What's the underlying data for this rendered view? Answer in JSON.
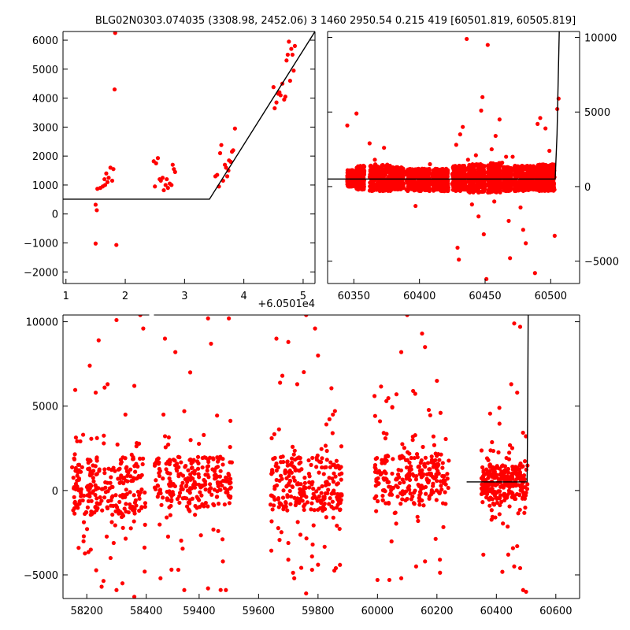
{
  "title": "BLG02N0303.074035 (3308.98, 2452.06)   3 1460 2950.54 0.215 419 [60501.819, 60505.819]",
  "colors": {
    "points": "#ff0000",
    "model": "#000000",
    "axes": "#000000"
  },
  "chart_data": [
    {
      "id": "zoom",
      "type": "scatter",
      "xlim": [
        0.95,
        5.2
      ],
      "ylim": [
        -2400,
        6300
      ],
      "x_ticks": [
        1,
        2,
        3,
        4,
        5
      ],
      "x_tick_labels": [
        "1",
        "2",
        "3",
        "4",
        "5"
      ],
      "x_offset_label": "+6.0501e4",
      "y_ticks": [
        -2000,
        -1000,
        0,
        1000,
        2000,
        3000,
        4000,
        5000,
        6000
      ],
      "y_tick_labels": [
        "−2000",
        "−1000",
        "0",
        "1000",
        "2000",
        "3000",
        "4000",
        "5000",
        "6000"
      ],
      "y_axis_side": "left",
      "model_line": [
        [
          0.95,
          510
        ],
        [
          3.42,
          510
        ],
        [
          5.2,
          6300
        ]
      ],
      "points": [
        [
          1.5,
          320
        ],
        [
          1.52,
          130
        ],
        [
          1.5,
          -1020
        ],
        [
          1.53,
          870
        ],
        [
          1.58,
          900
        ],
        [
          1.62,
          950
        ],
        [
          1.65,
          1200
        ],
        [
          1.68,
          1400
        ],
        [
          1.7,
          1100
        ],
        [
          1.72,
          1250
        ],
        [
          1.75,
          1600
        ],
        [
          1.78,
          1150
        ],
        [
          1.8,
          1550
        ],
        [
          1.82,
          4300
        ],
        [
          1.85,
          -1070
        ],
        [
          1.83,
          6250
        ],
        [
          1.66,
          1000
        ],
        [
          2.48,
          1820
        ],
        [
          2.52,
          1750
        ],
        [
          2.55,
          1930
        ],
        [
          2.5,
          950
        ],
        [
          2.58,
          1200
        ],
        [
          2.6,
          1150
        ],
        [
          2.63,
          1250
        ],
        [
          2.65,
          820
        ],
        [
          2.68,
          1000
        ],
        [
          2.7,
          1200
        ],
        [
          2.72,
          900
        ],
        [
          2.75,
          1050
        ],
        [
          2.78,
          1000
        ],
        [
          2.8,
          1700
        ],
        [
          2.82,
          1550
        ],
        [
          2.84,
          1450
        ],
        [
          3.52,
          1300
        ],
        [
          3.55,
          1350
        ],
        [
          3.58,
          950
        ],
        [
          3.6,
          2100
        ],
        [
          3.62,
          2380
        ],
        [
          3.65,
          1150
        ],
        [
          3.68,
          1700
        ],
        [
          3.7,
          1600
        ],
        [
          3.72,
          1300
        ],
        [
          3.75,
          1850
        ],
        [
          3.78,
          1800
        ],
        [
          3.8,
          2150
        ],
        [
          3.82,
          2200
        ],
        [
          3.85,
          2950
        ],
        [
          3.74,
          1500
        ],
        [
          4.5,
          4380
        ],
        [
          4.52,
          3650
        ],
        [
          4.55,
          3850
        ],
        [
          4.58,
          4150
        ],
        [
          4.6,
          4200
        ],
        [
          4.62,
          4100
        ],
        [
          4.65,
          4500
        ],
        [
          4.68,
          3950
        ],
        [
          4.7,
          4050
        ],
        [
          4.72,
          5300
        ],
        [
          4.74,
          5500
        ],
        [
          4.76,
          5950
        ],
        [
          4.78,
          4600
        ],
        [
          4.8,
          5700
        ],
        [
          4.82,
          5500
        ],
        [
          4.84,
          4950
        ],
        [
          4.86,
          5800
        ]
      ]
    },
    {
      "id": "recent",
      "type": "scatter",
      "xlim": [
        60330,
        60522
      ],
      "ylim": [
        -6500,
        10400
      ],
      "x_ticks": [
        60350,
        60400,
        60450,
        60500
      ],
      "x_tick_labels": [
        "60350",
        "60400",
        "60450",
        "60500"
      ],
      "y_ticks": [
        -5000,
        0,
        5000,
        10000
      ],
      "y_tick_labels": [
        "−5000",
        "0",
        "5000",
        "10000"
      ],
      "y_axis_side": "right",
      "model_line": [
        [
          60330,
          510
        ],
        [
          60503.4,
          510
        ],
        [
          60504.8,
          3500
        ],
        [
          60506.5,
          10400
        ]
      ],
      "points": [
        [
          60345,
          4100
        ],
        [
          60352,
          4900
        ],
        [
          60362,
          2900
        ],
        [
          60366,
          1800
        ],
        [
          60373,
          2600
        ],
        [
          60383,
          900
        ],
        [
          60392,
          600
        ],
        [
          60397,
          -1300
        ],
        [
          60408,
          1500
        ],
        [
          60419,
          -300
        ],
        [
          60428,
          2800
        ],
        [
          60429,
          -4100
        ],
        [
          60430,
          -4900
        ],
        [
          60431,
          3500
        ],
        [
          60433,
          4000
        ],
        [
          60436,
          9900
        ],
        [
          60437,
          1800
        ],
        [
          60440,
          -1200
        ],
        [
          60443,
          2100
        ],
        [
          60445,
          -2000
        ],
        [
          60447,
          5100
        ],
        [
          60448,
          6000
        ],
        [
          60449,
          -3200
        ],
        [
          60451,
          -6200
        ],
        [
          60452,
          9500
        ],
        [
          60455,
          2500
        ],
        [
          60457,
          -1000
        ],
        [
          60458,
          3400
        ],
        [
          60461,
          4500
        ],
        [
          60463,
          1600
        ],
        [
          60466,
          2000
        ],
        [
          60468,
          -2300
        ],
        [
          60469,
          -4800
        ],
        [
          60471,
          2000
        ],
        [
          60477,
          -1400
        ],
        [
          60479,
          -2900
        ],
        [
          60481,
          -3800
        ],
        [
          60483,
          1100
        ],
        [
          60488,
          -5800
        ],
        [
          60490,
          4200
        ],
        [
          60492,
          4600
        ],
        [
          60496,
          3900
        ],
        [
          60499,
          2400
        ],
        [
          60503,
          -3300
        ],
        [
          60505,
          5200
        ],
        [
          60506,
          5900
        ]
      ],
      "clusters": [
        {
          "x": [
            60345,
            60350
          ],
          "y": [
            0,
            1100
          ]
        },
        {
          "x": [
            60352,
            60358
          ],
          "y": [
            -200,
            1400
          ]
        },
        {
          "x": [
            60362,
            60378
          ],
          "y": [
            -300,
            1500
          ]
        },
        {
          "x": [
            60378,
            60388
          ],
          "y": [
            -200,
            1300
          ]
        },
        {
          "x": [
            60390,
            60408
          ],
          "y": [
            -300,
            1200
          ]
        },
        {
          "x": [
            60410,
            60422
          ],
          "y": [
            -300,
            1200
          ]
        },
        {
          "x": [
            60425,
            60435
          ],
          "y": [
            -300,
            1400
          ]
        },
        {
          "x": [
            60437,
            60450
          ],
          "y": [
            -400,
            1500
          ]
        },
        {
          "x": [
            60452,
            60462
          ],
          "y": [
            -400,
            1600
          ]
        },
        {
          "x": [
            60464,
            60470
          ],
          "y": [
            -300,
            1300
          ]
        },
        {
          "x": [
            60472,
            60490
          ],
          "y": [
            -300,
            1400
          ]
        },
        {
          "x": [
            60490,
            60503
          ],
          "y": [
            -300,
            1500
          ]
        }
      ]
    },
    {
      "id": "full",
      "type": "scatter",
      "xlim": [
        58120,
        60680
      ],
      "ylim": [
        -6400,
        10400
      ],
      "x_break": [
        58418,
        59240
      ],
      "x_ticks": [
        58200,
        58400,
        59400,
        59600,
        59800,
        60000,
        60200,
        60400,
        60600
      ],
      "x_tick_labels": [
        "58200",
        "58400",
        "59400",
        "59600",
        "59800",
        "60000",
        "60200",
        "60400",
        "60600"
      ],
      "y_ticks": [
        -5000,
        0,
        5000,
        10000
      ],
      "y_tick_labels": [
        "−5000",
        "0",
        "5000",
        "10000"
      ],
      "y_axis_side": "left",
      "model_line": [
        [
          60300,
          510
        ],
        [
          60503.4,
          510
        ],
        [
          60505.5,
          5000
        ],
        [
          60507,
          10400
        ]
      ],
      "points": [
        [
          58210,
          7400
        ],
        [
          58240,
          8900
        ],
        [
          58260,
          6100
        ],
        [
          58270,
          6300
        ],
        [
          58300,
          10100
        ],
        [
          58380,
          10400
        ],
        [
          58390,
          9600
        ],
        [
          58360,
          6200
        ],
        [
          58330,
          4500
        ],
        [
          58230,
          5800
        ],
        [
          58250,
          -5700
        ],
        [
          58300,
          -5900
        ],
        [
          58320,
          -5500
        ],
        [
          58360,
          -6300
        ],
        [
          58280,
          -4000
        ],
        [
          59285,
          9000
        ],
        [
          59320,
          8200
        ],
        [
          59370,
          7000
        ],
        [
          59430,
          10200
        ],
        [
          59500,
          10200
        ],
        [
          59440,
          8700
        ],
        [
          59280,
          4500
        ],
        [
          59350,
          4700
        ],
        [
          59270,
          -5200
        ],
        [
          59330,
          -4700
        ],
        [
          59350,
          -5900
        ],
        [
          59430,
          -5800
        ],
        [
          59480,
          -4200
        ],
        [
          59490,
          -5900
        ],
        [
          59660,
          9000
        ],
        [
          59700,
          8800
        ],
        [
          59730,
          6300
        ],
        [
          59760,
          10400
        ],
        [
          59790,
          9600
        ],
        [
          59800,
          8000
        ],
        [
          59680,
          6800
        ],
        [
          59850,
          4500
        ],
        [
          59700,
          -4100
        ],
        [
          59720,
          -5200
        ],
        [
          59760,
          -6100
        ],
        [
          59800,
          -4400
        ],
        [
          59860,
          -4600
        ],
        [
          59780,
          -4700
        ],
        [
          59990,
          5600
        ],
        [
          60030,
          5300
        ],
        [
          60080,
          8200
        ],
        [
          60100,
          10400
        ],
        [
          60150,
          9300
        ],
        [
          60160,
          8500
        ],
        [
          60200,
          6500
        ],
        [
          60120,
          5900
        ],
        [
          60000,
          -5300
        ],
        [
          60040,
          -5300
        ],
        [
          60080,
          -5200
        ],
        [
          60130,
          -4500
        ],
        [
          60160,
          -4200
        ],
        [
          60210,
          -4100
        ],
        [
          60460,
          9900
        ],
        [
          60480,
          9700
        ],
        [
          60450,
          6300
        ],
        [
          60470,
          5800
        ],
        [
          60410,
          4900
        ],
        [
          60470,
          -3300
        ],
        [
          60480,
          -4600
        ],
        [
          60490,
          -5900
        ],
        [
          60500,
          -6000
        ],
        [
          60440,
          -3800
        ],
        [
          60460,
          -4500
        ]
      ],
      "clusters": [
        {
          "x": [
            58150,
            58400
          ],
          "y": [
            -1500,
            2000
          ],
          "spread": 4500
        },
        {
          "x": [
            59250,
            59510
          ],
          "y": [
            -1000,
            2000
          ],
          "spread": 4500
        },
        {
          "x": [
            59640,
            59880
          ],
          "y": [
            -1200,
            2000
          ],
          "spread": 5000
        },
        {
          "x": [
            59990,
            60240
          ],
          "y": [
            -800,
            2200
          ],
          "spread": 5000
        },
        {
          "x": [
            60350,
            60505
          ],
          "y": [
            -500,
            1500
          ],
          "spread": 4000
        }
      ]
    }
  ]
}
